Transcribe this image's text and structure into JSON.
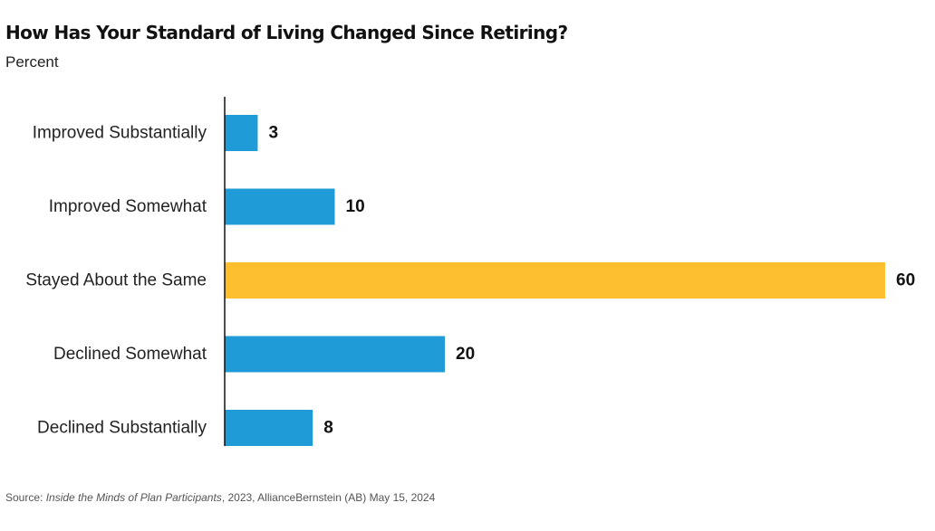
{
  "chart_data": {
    "type": "bar",
    "orientation": "horizontal",
    "title": "How Has Your Standard of Living Changed Since Retiring?",
    "subtitle": "Percent",
    "categories": [
      "Improved Substantially",
      "Improved Somewhat",
      "Stayed About the Same",
      "Declined Somewhat",
      "Declined Substantially"
    ],
    "values": [
      3,
      10,
      60,
      20,
      8
    ],
    "bar_colors": [
      "#1f9bd7",
      "#1f9bd7",
      "#fdbf2d",
      "#1f9bd7",
      "#1f9bd7"
    ],
    "highlight_category": "Stayed About the Same",
    "xlim": [
      0,
      60
    ],
    "grid": false,
    "legend": false,
    "data_labels": true
  },
  "source": {
    "prefix": "Source: ",
    "publication": "Inside the Minds of Plan Participants",
    "suffix": ", 2023, AllianceBernstein (AB) May 15, 2024"
  }
}
